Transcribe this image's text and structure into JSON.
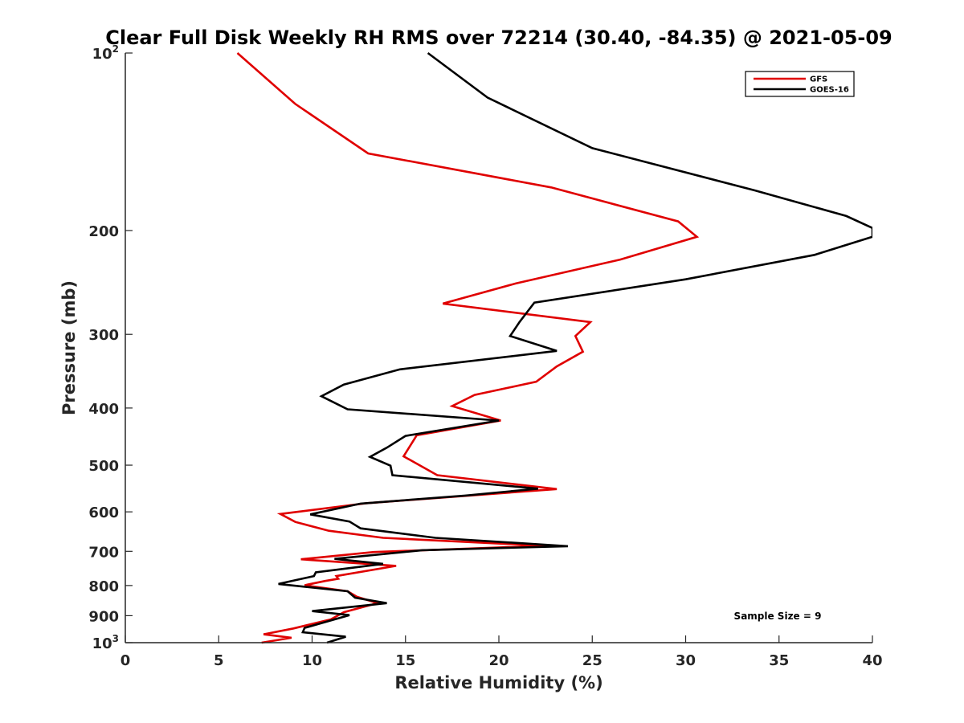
{
  "chart_data": {
    "type": "line",
    "title": "Clear Full Disk Weekly RH RMS over 72214 (30.40, -84.35) @ 2021-05-09",
    "xlabel": "Relative Humidity (%)",
    "ylabel": "Pressure (mb)",
    "xlim": [
      0,
      40
    ],
    "ylim": [
      100,
      1000
    ],
    "yscale": "log",
    "y_reversed": true,
    "x_ticks": [
      {
        "value": 0,
        "label": "0"
      },
      {
        "value": 5,
        "label": "5"
      },
      {
        "value": 10,
        "label": "10"
      },
      {
        "value": 15,
        "label": "15"
      },
      {
        "value": 20,
        "label": "20"
      },
      {
        "value": 25,
        "label": "25"
      },
      {
        "value": 30,
        "label": "30"
      },
      {
        "value": 35,
        "label": "35"
      },
      {
        "value": 40,
        "label": "40"
      }
    ],
    "y_ticks": [
      {
        "value": 100,
        "label": "10",
        "sup": "2"
      },
      {
        "value": 200,
        "label": "200"
      },
      {
        "value": 300,
        "label": "300"
      },
      {
        "value": 400,
        "label": "400"
      },
      {
        "value": 500,
        "label": "500"
      },
      {
        "value": 600,
        "label": "600"
      },
      {
        "value": 700,
        "label": "700"
      },
      {
        "value": 800,
        "label": "800"
      },
      {
        "value": 900,
        "label": "900"
      },
      {
        "value": 1000,
        "label": "10",
        "sup": "3"
      }
    ],
    "legend_position": "top-right",
    "annotation": "Sample Size = 9",
    "series": [
      {
        "name": "GFS",
        "color": "#e00000",
        "points": [
          [
            6.0,
            100
          ],
          [
            9.1,
            122
          ],
          [
            13.0,
            148
          ],
          [
            22.8,
            169
          ],
          [
            29.6,
            193
          ],
          [
            30.6,
            205
          ],
          [
            26.5,
            224
          ],
          [
            20.9,
            246
          ],
          [
            17.0,
            266
          ],
          [
            24.9,
            286
          ],
          [
            24.1,
            302
          ],
          [
            24.5,
            321
          ],
          [
            23.1,
            340
          ],
          [
            22.0,
            361
          ],
          [
            18.7,
            380
          ],
          [
            17.5,
            397
          ],
          [
            20.1,
            420
          ],
          [
            15.6,
            445
          ],
          [
            14.9,
            483
          ],
          [
            16.7,
            520
          ],
          [
            23.1,
            549
          ],
          [
            12.9,
            580
          ],
          [
            8.3,
            605
          ],
          [
            9.1,
            624
          ],
          [
            10.9,
            646
          ],
          [
            13.8,
            664
          ],
          [
            22.5,
            685
          ],
          [
            13.3,
            702
          ],
          [
            9.4,
            722
          ],
          [
            14.5,
            741
          ],
          [
            11.3,
            771
          ],
          [
            11.4,
            779
          ],
          [
            10.7,
            786
          ],
          [
            9.6,
            799
          ],
          [
            11.9,
            818
          ],
          [
            12.4,
            836
          ],
          [
            13.5,
            857
          ],
          [
            11.7,
            888
          ],
          [
            11.0,
            913
          ],
          [
            9.0,
            946
          ],
          [
            7.4,
            968
          ],
          [
            8.9,
            981
          ],
          [
            7.3,
            1000
          ]
        ]
      },
      {
        "name": "GOES-16",
        "color": "#000000",
        "points": [
          [
            16.2,
            100
          ],
          [
            19.4,
            119
          ],
          [
            25.0,
            145
          ],
          [
            33.7,
            171
          ],
          [
            38.6,
            189
          ],
          [
            40.0,
            198
          ],
          [
            40.0,
            205
          ],
          [
            36.9,
            220
          ],
          [
            30.0,
            242
          ],
          [
            21.9,
            265
          ],
          [
            21.1,
            286
          ],
          [
            20.6,
            302
          ],
          [
            23.1,
            320
          ],
          [
            14.7,
            344
          ],
          [
            11.7,
            365
          ],
          [
            10.5,
            382
          ],
          [
            11.9,
            402
          ],
          [
            20.0,
            420
          ],
          [
            15.0,
            446
          ],
          [
            14.0,
            467
          ],
          [
            13.1,
            484
          ],
          [
            14.2,
            501
          ],
          [
            14.3,
            520
          ],
          [
            22.1,
            548
          ],
          [
            18.2,
            563
          ],
          [
            12.6,
            581
          ],
          [
            9.9,
            606
          ],
          [
            12.0,
            623
          ],
          [
            12.6,
            640
          ],
          [
            16.6,
            664
          ],
          [
            23.7,
            686
          ],
          [
            15.9,
            697
          ],
          [
            11.2,
            721
          ],
          [
            13.8,
            735
          ],
          [
            10.2,
            760
          ],
          [
            10.1,
            771
          ],
          [
            8.2,
            795
          ],
          [
            11.9,
            818
          ],
          [
            12.3,
            839
          ],
          [
            14.0,
            857
          ],
          [
            10.0,
            884
          ],
          [
            12.0,
            898
          ],
          [
            9.6,
            944
          ],
          [
            9.5,
            960
          ],
          [
            11.8,
            977
          ],
          [
            10.8,
            1000
          ]
        ]
      }
    ]
  }
}
